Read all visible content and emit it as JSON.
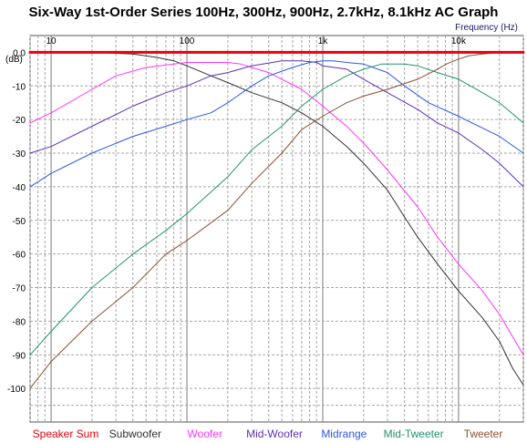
{
  "chart_data": {
    "type": "line",
    "title": "Six-Way 1st-Order Series 100Hz, 300Hz, 900Hz, 2.7kHz, 8.1kHz AC Graph",
    "xlabel": "Frequency   (Hz)",
    "ylabel": "(dB)",
    "x_scale": "log",
    "xlim": [
      7,
      30000
    ],
    "ylim": [
      -110,
      5
    ],
    "grid": true,
    "legend_position": "bottom",
    "x_tick_labels": [
      "10",
      "100",
      "1k",
      "10k"
    ],
    "x_tick_values": [
      10,
      100,
      1000,
      10000
    ],
    "y_ticks": [
      0,
      -10,
      -20,
      -30,
      -40,
      -50,
      -60,
      -70,
      -80,
      -90,
      -100
    ],
    "y_tick_labels": [
      "0.0",
      "-10",
      "-20",
      "-30",
      "-40",
      "-50",
      "-60",
      "-70",
      "-80",
      "-90",
      "-100"
    ],
    "series": [
      {
        "name": "Speaker Sum",
        "color": "#e8000b",
        "points": [
          [
            7,
            0
          ],
          [
            30000,
            0
          ]
        ]
      },
      {
        "name": "Subwoofer",
        "color": "#303030",
        "points": [
          [
            7,
            0
          ],
          [
            20,
            0
          ],
          [
            40,
            -0.5
          ],
          [
            60,
            -1.5
          ],
          [
            80,
            -2.5
          ],
          [
            100,
            -4
          ],
          [
            150,
            -7
          ],
          [
            200,
            -9
          ],
          [
            300,
            -12
          ],
          [
            500,
            -15
          ],
          [
            700,
            -18
          ],
          [
            1000,
            -22
          ],
          [
            1500,
            -28
          ],
          [
            2000,
            -33
          ],
          [
            3000,
            -41
          ],
          [
            4000,
            -49
          ],
          [
            5000,
            -55
          ],
          [
            7000,
            -63
          ],
          [
            10000,
            -71
          ],
          [
            15000,
            -79
          ],
          [
            20000,
            -86
          ],
          [
            25000,
            -94
          ],
          [
            30000,
            -99
          ]
        ]
      },
      {
        "name": "Woofer",
        "color": "#ff33ff",
        "points": [
          [
            7,
            -21
          ],
          [
            10,
            -18
          ],
          [
            20,
            -11
          ],
          [
            30,
            -7
          ],
          [
            50,
            -4.5
          ],
          [
            80,
            -3.5
          ],
          [
            100,
            -3
          ],
          [
            150,
            -3
          ],
          [
            200,
            -3
          ],
          [
            250,
            -3.5
          ],
          [
            300,
            -4.5
          ],
          [
            400,
            -6
          ],
          [
            500,
            -8
          ],
          [
            700,
            -11
          ],
          [
            1000,
            -16
          ],
          [
            1500,
            -22
          ],
          [
            2000,
            -27
          ],
          [
            3000,
            -35
          ],
          [
            5000,
            -46
          ],
          [
            7000,
            -55
          ],
          [
            10000,
            -63
          ],
          [
            15000,
            -71
          ],
          [
            20000,
            -78
          ],
          [
            30000,
            -90
          ]
        ]
      },
      {
        "name": "Mid-Woofer",
        "color": "#5d2fb7",
        "points": [
          [
            7,
            -30
          ],
          [
            10,
            -28
          ],
          [
            20,
            -22
          ],
          [
            40,
            -16
          ],
          [
            70,
            -12
          ],
          [
            100,
            -10
          ],
          [
            150,
            -7
          ],
          [
            200,
            -6
          ],
          [
            300,
            -4
          ],
          [
            500,
            -2.5
          ],
          [
            700,
            -2.5
          ],
          [
            900,
            -3
          ],
          [
            1000,
            -4
          ],
          [
            1500,
            -5
          ],
          [
            2000,
            -8
          ],
          [
            3000,
            -12
          ],
          [
            5000,
            -17
          ],
          [
            7000,
            -21
          ],
          [
            10000,
            -24
          ],
          [
            15000,
            -29
          ],
          [
            20000,
            -33
          ],
          [
            30000,
            -40
          ]
        ]
      },
      {
        "name": "Midrange",
        "color": "#2a56e6",
        "points": [
          [
            7,
            -40
          ],
          [
            10,
            -36
          ],
          [
            20,
            -30
          ],
          [
            40,
            -25
          ],
          [
            70,
            -22
          ],
          [
            100,
            -20
          ],
          [
            150,
            -18
          ],
          [
            200,
            -15
          ],
          [
            300,
            -10
          ],
          [
            400,
            -7
          ],
          [
            600,
            -4.5
          ],
          [
            800,
            -3
          ],
          [
            1000,
            -2.5
          ],
          [
            1200,
            -2.5
          ],
          [
            1500,
            -3
          ],
          [
            2000,
            -3.5
          ],
          [
            3000,
            -6
          ],
          [
            4000,
            -10
          ],
          [
            6000,
            -15
          ],
          [
            10000,
            -19
          ],
          [
            20000,
            -25
          ],
          [
            30000,
            -30
          ]
        ]
      },
      {
        "name": "Mid-Tweeter",
        "color": "#23936e",
        "points": [
          [
            7,
            -90
          ],
          [
            10,
            -83
          ],
          [
            20,
            -70
          ],
          [
            40,
            -60
          ],
          [
            70,
            -53
          ],
          [
            100,
            -48
          ],
          [
            200,
            -37
          ],
          [
            300,
            -29
          ],
          [
            500,
            -22
          ],
          [
            700,
            -16
          ],
          [
            1000,
            -11
          ],
          [
            1500,
            -7
          ],
          [
            2000,
            -5
          ],
          [
            2700,
            -3.5
          ],
          [
            4000,
            -3.5
          ],
          [
            5000,
            -4
          ],
          [
            7000,
            -6
          ],
          [
            10000,
            -8
          ],
          [
            15000,
            -12
          ],
          [
            20000,
            -15
          ],
          [
            30000,
            -21
          ]
        ]
      },
      {
        "name": "Tweeter",
        "color": "#8a5030",
        "points": [
          [
            7,
            -100
          ],
          [
            10,
            -92
          ],
          [
            20,
            -80
          ],
          [
            40,
            -70
          ],
          [
            70,
            -60
          ],
          [
            100,
            -56
          ],
          [
            200,
            -47
          ],
          [
            300,
            -39
          ],
          [
            500,
            -30
          ],
          [
            700,
            -23
          ],
          [
            1000,
            -19
          ],
          [
            1500,
            -15
          ],
          [
            2000,
            -13
          ],
          [
            3000,
            -11
          ],
          [
            5000,
            -8
          ],
          [
            7000,
            -5
          ],
          [
            8100,
            -3.5
          ],
          [
            10000,
            -2
          ],
          [
            12000,
            -1
          ],
          [
            15000,
            -0.5
          ],
          [
            20000,
            0
          ],
          [
            30000,
            0
          ]
        ]
      }
    ]
  }
}
